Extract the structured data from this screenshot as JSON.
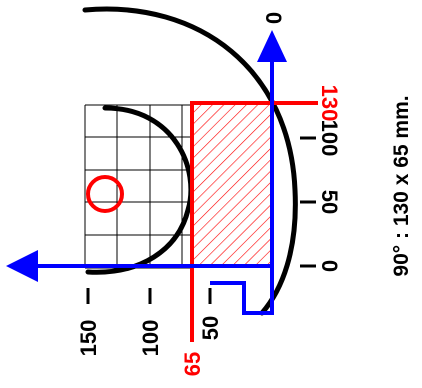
{
  "labels": {
    "tick_0_right": "0",
    "tick_50_right": "50",
    "tick_100_right": "100",
    "tick_130_right": "130",
    "tick_top_0": "0",
    "tick_150_bottom": "150",
    "tick_100_bottom": "100",
    "tick_50_bottom": "50",
    "tick_65_bottom": "65",
    "caption": "90° : 130 x 65 mm."
  },
  "colors": {
    "frame": "#000000",
    "axis": "#0000ff",
    "highlight": "#ff0000"
  }
}
